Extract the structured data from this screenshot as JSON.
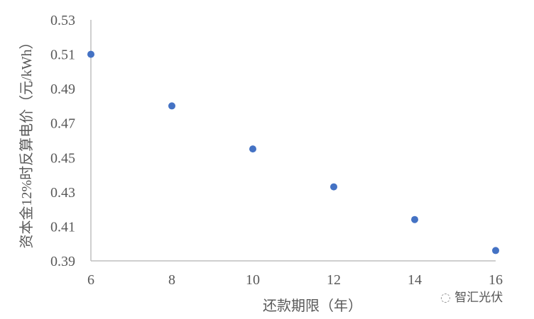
{
  "chart_data": {
    "type": "scatter",
    "title": "",
    "xlabel": "还款期限（年）",
    "ylabel": "资本金12%时反算电价（元/kWh）",
    "xlim": [
      6,
      16
    ],
    "ylim": [
      0.39,
      0.53
    ],
    "xticks": [
      "6",
      "8",
      "10",
      "12",
      "14",
      "16"
    ],
    "yticks": [
      "0.39",
      "0.41",
      "0.43",
      "0.45",
      "0.47",
      "0.49",
      "0.51",
      "0.53"
    ],
    "grid": false,
    "series": [
      {
        "x": [
          6,
          8,
          10,
          12,
          14,
          16
        ],
        "y": [
          0.51,
          0.48,
          0.455,
          0.433,
          0.414,
          0.396
        ],
        "color": "#4472C4"
      }
    ]
  },
  "watermark": {
    "icon": "wechat-icon",
    "text": "智汇光伏"
  }
}
